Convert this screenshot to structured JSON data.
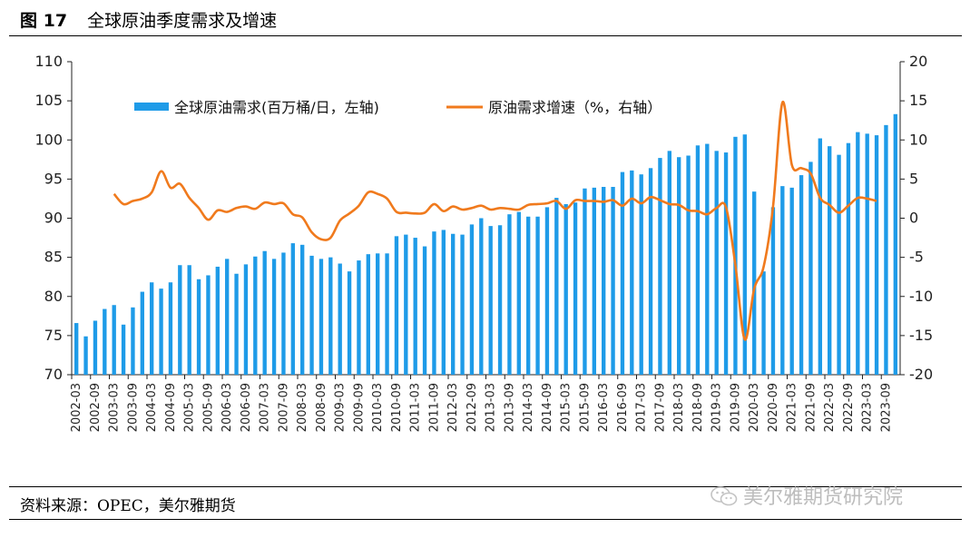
{
  "header": {
    "figure_label": "图 17",
    "title": "全球原油季度需求及增速"
  },
  "source": "资料来源：OPEC，美尔雅期货",
  "watermark": "美尔雅期货研究院",
  "colors": {
    "bar": "#1e9be8",
    "line": "#f07a1d"
  },
  "chart_data": {
    "type": "bar",
    "title": "",
    "left_axis": {
      "min": 70,
      "max": 110,
      "ticks": [
        70,
        75,
        80,
        85,
        90,
        95,
        100,
        105,
        110
      ]
    },
    "right_axis": {
      "min": -20,
      "max": 20,
      "ticks": [
        -20,
        -15,
        -10,
        -5,
        0,
        5,
        10,
        15,
        20
      ]
    },
    "x_tick_labels": [
      "2002-03",
      "2002-09",
      "2003-03",
      "2003-09",
      "2004-03",
      "2004-09",
      "2005-03",
      "2005-09",
      "2006-03",
      "2006-09",
      "2007-03",
      "2007-09",
      "2008-03",
      "2008-09",
      "2009-03",
      "2009-09",
      "2010-03",
      "2010-09",
      "2011-03",
      "2011-09",
      "2012-03",
      "2012-09",
      "2013-03",
      "2013-09",
      "2014-03",
      "2014-09",
      "2015-03",
      "2015-09",
      "2016-03",
      "2016-09",
      "2017-03",
      "2017-09",
      "2018-03",
      "2018-09",
      "2019-03",
      "2019-09",
      "2020-03",
      "2020-09",
      "2021-03",
      "2021-09",
      "2022-03",
      "2022-09",
      "2023-03",
      "2023-09"
    ],
    "series": [
      {
        "name": "全球原油需求(百万桶/日，左轴)",
        "type": "bar",
        "axis": "left",
        "values": [
          76.6,
          74.9,
          76.9,
          78.4,
          78.9,
          76.4,
          78.6,
          80.6,
          81.8,
          81.0,
          81.8,
          84.0,
          84.0,
          82.2,
          82.7,
          83.8,
          84.8,
          82.9,
          84.1,
          85.1,
          85.8,
          84.8,
          85.6,
          86.8,
          86.6,
          85.2,
          84.8,
          85.0,
          84.2,
          83.2,
          84.6,
          85.4,
          85.5,
          85.5,
          87.7,
          87.9,
          87.5,
          86.4,
          88.3,
          88.5,
          88.0,
          87.9,
          89.2,
          90.0,
          89.0,
          89.1,
          90.5,
          90.8,
          90.2,
          90.2,
          91.4,
          92.6,
          91.8,
          92.0,
          93.8,
          93.9,
          94.0,
          94.0,
          95.9,
          96.1,
          95.6,
          96.4,
          97.7,
          98.6,
          97.8,
          98.0,
          99.3,
          99.5,
          98.6,
          98.4,
          100.4,
          100.7,
          93.4,
          83.2,
          91.4,
          94.1,
          93.9,
          95.5,
          97.2,
          100.2,
          99.2,
          98.1,
          99.6,
          101.0,
          100.8,
          100.6,
          101.9,
          103.3
        ]
      },
      {
        "name": "原油需求增速（%，右轴）",
        "type": "line",
        "axis": "right",
        "values": [
          3.1,
          1.8,
          2.2,
          2.5,
          3.3,
          6.0,
          3.9,
          4.4,
          2.6,
          1.3,
          -0.2,
          1.0,
          0.8,
          1.3,
          1.5,
          1.2,
          2.0,
          1.8,
          1.9,
          0.5,
          0.1,
          -1.8,
          -2.7,
          -2.5,
          -0.3,
          0.6,
          1.6,
          3.3,
          3.1,
          2.5,
          0.8,
          0.7,
          0.6,
          0.7,
          1.8,
          0.9,
          1.5,
          1.1,
          1.3,
          1.6,
          1.1,
          1.3,
          1.2,
          1.1,
          1.7,
          1.8,
          1.9,
          2.2,
          1.2,
          2.3,
          2.2,
          2.2,
          2.1,
          2.3,
          1.6,
          2.5,
          1.9,
          2.7,
          2.3,
          1.8,
          1.7,
          1.0,
          0.9,
          0.5,
          1.3,
          1.4,
          -6.0,
          -15.5,
          -9.0,
          -6.2,
          1.5,
          14.8,
          6.8,
          6.4,
          5.7,
          2.6,
          1.7,
          0.7,
          1.6,
          2.6,
          2.5,
          2.2
        ],
        "start_index": 4
      }
    ]
  }
}
